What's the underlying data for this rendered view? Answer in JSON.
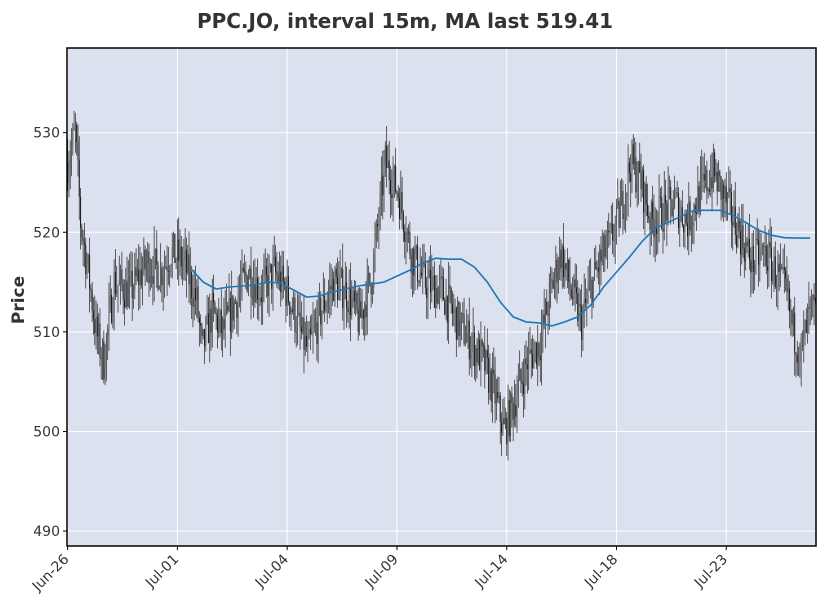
{
  "chart_data": {
    "type": "candlestick",
    "title": "PPC.JO, interval 15m, MA last 519.41",
    "ylabel": "Price",
    "xlabel": "",
    "ylim": [
      488.5,
      538.5
    ],
    "yticks": [
      490,
      500,
      510,
      520,
      530
    ],
    "xticks": [
      "Jun-26",
      "Jul-01",
      "Jul-04",
      "Jul-09",
      "Jul-14",
      "Jul-18",
      "Jul-23"
    ],
    "grid": true,
    "colors": {
      "plot_bg": "#dce1ef",
      "grid": "#ffffff",
      "candle": "#3a3a3a",
      "ma": "#1f77b4",
      "frame": "#000000"
    },
    "price_waypoints": [
      [
        0,
        527
      ],
      [
        6,
        530
      ],
      [
        10,
        521
      ],
      [
        16,
        516
      ],
      [
        22,
        510
      ],
      [
        28,
        507
      ],
      [
        36,
        515
      ],
      [
        48,
        514
      ],
      [
        62,
        517
      ],
      [
        72,
        516
      ],
      [
        80,
        518
      ],
      [
        90,
        517
      ],
      [
        100,
        513
      ],
      [
        104,
        508
      ],
      [
        112,
        512
      ],
      [
        120,
        510
      ],
      [
        130,
        513
      ],
      [
        140,
        516
      ],
      [
        150,
        514
      ],
      [
        160,
        516
      ],
      [
        170,
        514
      ],
      [
        180,
        510
      ],
      [
        186,
        508
      ],
      [
        196,
        512
      ],
      [
        206,
        515
      ],
      [
        216,
        514
      ],
      [
        226,
        511
      ],
      [
        236,
        516
      ],
      [
        246,
        527
      ],
      [
        256,
        524
      ],
      [
        266,
        518
      ],
      [
        276,
        515
      ],
      [
        290,
        514
      ],
      [
        302,
        511
      ],
      [
        312,
        509
      ],
      [
        322,
        507
      ],
      [
        330,
        504
      ],
      [
        338,
        500
      ],
      [
        346,
        503
      ],
      [
        356,
        507
      ],
      [
        366,
        509
      ],
      [
        374,
        514
      ],
      [
        382,
        518
      ],
      [
        390,
        514
      ],
      [
        398,
        511
      ],
      [
        404,
        514
      ],
      [
        412,
        517
      ],
      [
        420,
        519
      ],
      [
        428,
        522
      ],
      [
        436,
        527
      ],
      [
        444,
        525
      ],
      [
        452,
        521
      ],
      [
        460,
        522
      ],
      [
        470,
        523
      ],
      [
        480,
        521
      ],
      [
        490,
        524
      ],
      [
        500,
        526
      ],
      [
        510,
        523
      ],
      [
        520,
        520
      ],
      [
        530,
        517
      ],
      [
        540,
        518
      ],
      [
        548,
        516
      ],
      [
        556,
        514
      ],
      [
        562,
        510
      ],
      [
        568,
        508
      ],
      [
        575,
        512
      ]
    ],
    "moving_average": {
      "x": [
        95,
        105,
        115,
        125,
        135,
        145,
        155,
        165,
        175,
        185,
        195,
        205,
        215,
        225,
        235,
        245,
        255,
        265,
        275,
        285,
        295,
        305,
        315,
        325,
        335,
        345,
        355,
        365,
        375,
        385,
        395,
        405,
        415,
        425,
        435,
        445,
        455,
        465,
        475,
        485,
        495,
        505,
        515,
        525,
        535,
        545,
        555,
        565,
        575
      ],
      "y": [
        516.4,
        515.0,
        514.3,
        514.5,
        514.6,
        514.7,
        515.0,
        514.9,
        514.2,
        513.5,
        513.6,
        514.0,
        514.3,
        514.6,
        514.8,
        515.0,
        515.6,
        516.2,
        516.9,
        517.4,
        517.3,
        517.3,
        516.5,
        515.0,
        513.0,
        511.5,
        511.0,
        510.9,
        510.6,
        511.0,
        511.5,
        512.7,
        514.5,
        516.0,
        517.5,
        519.1,
        520.4,
        521.0,
        521.6,
        522.2,
        522.2,
        522.2,
        521.7,
        521.0,
        520.2,
        519.7,
        519.45,
        519.41,
        519.41
      ]
    }
  }
}
